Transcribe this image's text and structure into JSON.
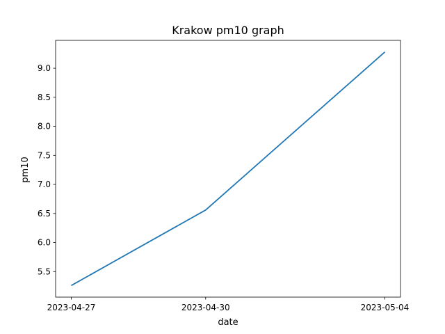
{
  "chart_data": {
    "type": "line",
    "title": "Krakow pm10 graph",
    "xlabel": "date",
    "ylabel": "pm10",
    "x": [
      "2023-04-27",
      "2023-04-30",
      "2023-05-04"
    ],
    "series": [
      {
        "values": [
          5.26,
          6.56,
          9.28
        ],
        "color": "#1f77b4"
      }
    ],
    "x_ticks": [
      "2023-04-27",
      "2023-04-30",
      "2023-05-04"
    ],
    "y_ticks": [
      "5.5",
      "6.0",
      "6.5",
      "7.0",
      "7.5",
      "8.0",
      "8.5",
      "9.0"
    ],
    "ylim": [
      5.06,
      9.48
    ],
    "grid": false,
    "legend": "none"
  }
}
